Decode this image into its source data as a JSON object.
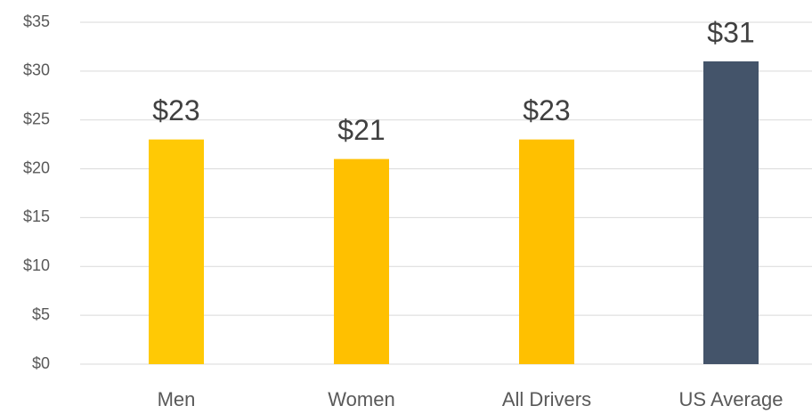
{
  "chart_data": {
    "type": "bar",
    "categories": [
      "Men",
      "Women",
      "All Drivers",
      "US Average"
    ],
    "values": [
      23,
      21,
      23,
      31
    ],
    "value_labels": [
      "$23",
      "$21",
      "$23",
      "$31"
    ],
    "colors": [
      "#FFC905",
      "#FFC000",
      "#FFC000",
      "#44546A"
    ],
    "ylim": [
      0,
      35
    ],
    "yticks": [
      {
        "value": 0,
        "label": "$0"
      },
      {
        "value": 5,
        "label": "$5"
      },
      {
        "value": 10,
        "label": "$10"
      },
      {
        "value": 15,
        "label": "$15"
      },
      {
        "value": 20,
        "label": "$20"
      },
      {
        "value": 25,
        "label": "$25"
      },
      {
        "value": 30,
        "label": "$30"
      },
      {
        "value": 35,
        "label": "$35"
      }
    ],
    "grid": true
  }
}
